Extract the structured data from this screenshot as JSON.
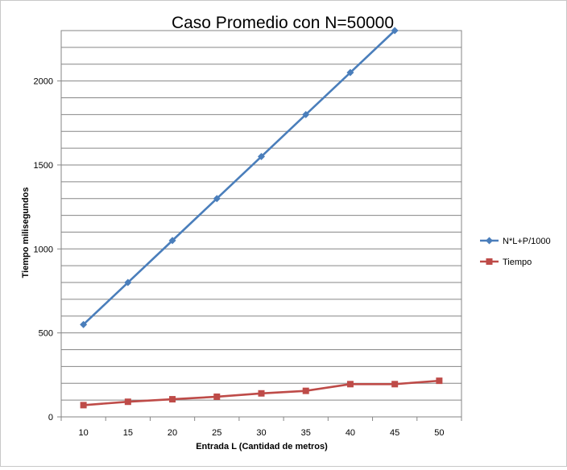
{
  "chart_data": {
    "type": "line",
    "title": "Caso Promedio con N=50000",
    "xlabel": "Entrada L (Cantidad de metros)",
    "ylabel": "Tiempo milisegundos",
    "categories": [
      "10",
      "15",
      "20",
      "25",
      "30",
      "35",
      "40",
      "45",
      "50"
    ],
    "ylim": [
      0,
      2300
    ],
    "yticks": [
      "0",
      "500",
      "1000",
      "1500",
      "2000"
    ],
    "grid": true,
    "legend": "right",
    "series": [
      {
        "name": "N*L+P/1000",
        "color": "#4a7ebb",
        "marker": "diamond",
        "values": [
          550,
          800,
          1050,
          1300,
          1550,
          1800,
          2050,
          2300,
          null
        ]
      },
      {
        "name": "Tiempo",
        "color": "#be4b48",
        "marker": "square",
        "values": [
          70,
          90,
          105,
          120,
          140,
          155,
          195,
          195,
          215
        ]
      }
    ]
  }
}
